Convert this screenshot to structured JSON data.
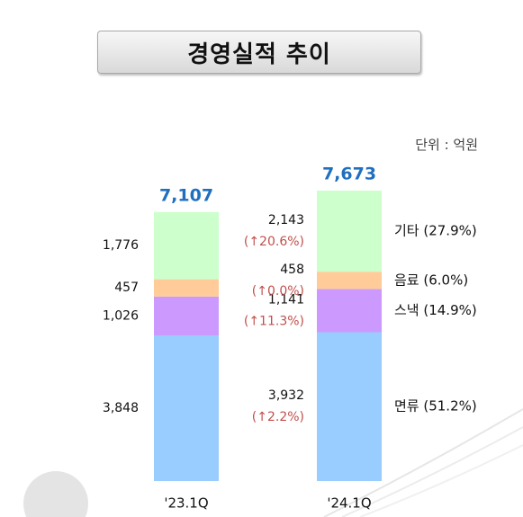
{
  "title": "경영실적 추이",
  "unit_label": "단위 : 억원",
  "chart_data": {
    "type": "bar",
    "stacked": true,
    "categories": [
      "'23.1Q",
      "'24.1Q"
    ],
    "series": [
      {
        "name": "면류",
        "values": [
          3848,
          3932
        ],
        "color": "#99ccff",
        "growth": "(↑2.2%)",
        "legend": "면류 (51.2%)"
      },
      {
        "name": "스낵",
        "values": [
          1026,
          1141
        ],
        "color": "#cc99ff",
        "growth": "(↑11.3%)",
        "legend": "스낵 (14.9%)"
      },
      {
        "name": "음료",
        "values": [
          457,
          458
        ],
        "color": "#ffcc99",
        "growth": "(↑0.0%)",
        "legend": "음료 (6.0%)"
      },
      {
        "name": "기타",
        "values": [
          1776,
          2143
        ],
        "color": "#ccffcc",
        "growth": "(↑20.6%)",
        "legend": "기타 (27.9%)"
      }
    ],
    "totals": [
      7107,
      7673
    ],
    "total_labels": [
      "7,107",
      "7,673"
    ],
    "value_labels": [
      [
        "3,848",
        "1,026",
        "457",
        "1,776"
      ],
      [
        "3,932",
        "1,141",
        "458",
        "2,143"
      ]
    ],
    "total_color": "#1f6fbf",
    "growth_color": "#c0504d",
    "ylim": [
      0,
      7673
    ],
    "grid": false
  }
}
